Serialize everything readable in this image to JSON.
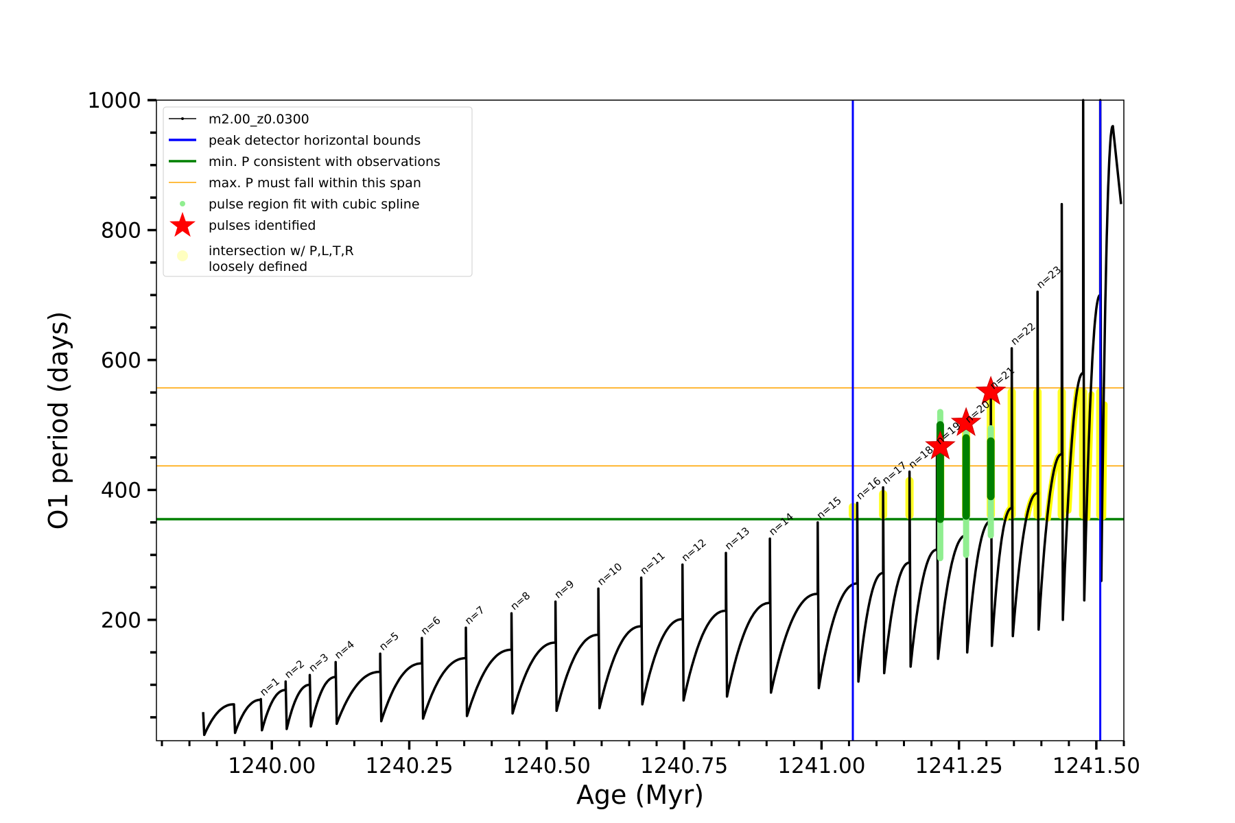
{
  "chart_data": {
    "type": "line",
    "xlabel": "Age (Myr)",
    "ylabel": "O1 period (days)",
    "xlim": [
      1239.79,
      1241.55
    ],
    "ylim": [
      14,
      1000
    ],
    "xticks": [
      1240.0,
      1240.25,
      1240.5,
      1240.75,
      1241.0,
      1241.25,
      1241.5
    ],
    "xtick_labels": [
      "1240.00",
      "1240.25",
      "1240.50",
      "1240.75",
      "1241.00",
      "1241.25",
      "1241.50"
    ],
    "yticks": [
      200,
      400,
      600,
      800,
      1000
    ],
    "ytick_labels": [
      "200",
      "400",
      "600",
      "800",
      "1000"
    ],
    "legend_position": "upper-left",
    "grid": false,
    "legend": [
      {
        "key": "track",
        "label": "m2.00_z0.0300",
        "marker": "line-dot",
        "color": "#000000"
      },
      {
        "key": "peak",
        "label": "peak detector horizontal bounds",
        "marker": "line",
        "color": "#0000ff"
      },
      {
        "key": "minp",
        "label": "min. P consistent with observations",
        "marker": "line",
        "color": "#008000"
      },
      {
        "key": "maxp",
        "label": "max. P must fall within this span",
        "marker": "line-thin",
        "color": "#ffa500"
      },
      {
        "key": "spline",
        "label": "pulse region fit with cubic spline",
        "marker": "dot",
        "color": "#90ee90"
      },
      {
        "key": "pulse",
        "label": "pulses identified",
        "marker": "star",
        "color": "#ff0000"
      },
      {
        "key": "intersect",
        "label": "intersection w/ P,L,T,R",
        "label2": "loosely defined",
        "marker": "big-dot",
        "color": "#ffffc0"
      }
    ],
    "vertical_lines": {
      "color": "#0000ff",
      "x": [
        1241.057,
        1241.507
      ]
    },
    "horizontal_lines": [
      {
        "y": 355,
        "color": "#008000",
        "kind": "min_period"
      },
      {
        "y": 437,
        "color": "#ffa500",
        "kind": "max_period_lower"
      },
      {
        "y": 557,
        "color": "#ffa500",
        "kind": "max_period_upper"
      }
    ],
    "series": [
      {
        "name": "m2.00_z0.0300",
        "color": "#000000",
        "pulses": [
          {
            "t0": 1239.875,
            "t1": 1239.931,
            "start": 23,
            "end": 70,
            "peak": 58
          },
          {
            "t0": 1239.931,
            "t1": 1239.98,
            "start": 26,
            "end": 77,
            "peak": 68
          },
          {
            "t0": 1239.98,
            "t1": 1240.025,
            "start": 30,
            "end": 92,
            "peak": 78,
            "n": "n=1"
          },
          {
            "t0": 1240.025,
            "t1": 1240.069,
            "start": 32,
            "end": 100,
            "peak": 105,
            "n": "n=2"
          },
          {
            "t0": 1240.069,
            "t1": 1240.116,
            "start": 36,
            "end": 112,
            "peak": 115,
            "n": "n=3"
          },
          {
            "t0": 1240.116,
            "t1": 1240.197,
            "start": 40,
            "end": 120,
            "peak": 135,
            "n": "n=4"
          },
          {
            "t0": 1240.197,
            "t1": 1240.273,
            "start": 44,
            "end": 133,
            "peak": 148,
            "n": "n=5"
          },
          {
            "t0": 1240.273,
            "t1": 1240.353,
            "start": 48,
            "end": 141,
            "peak": 172,
            "n": "n=6"
          },
          {
            "t0": 1240.353,
            "t1": 1240.436,
            "start": 52,
            "end": 154,
            "peak": 188,
            "n": "n=7"
          },
          {
            "t0": 1240.436,
            "t1": 1240.516,
            "start": 56,
            "end": 165,
            "peak": 210,
            "n": "n=8"
          },
          {
            "t0": 1240.516,
            "t1": 1240.594,
            "start": 60,
            "end": 177,
            "peak": 228,
            "n": "n=9"
          },
          {
            "t0": 1240.594,
            "t1": 1240.672,
            "start": 64,
            "end": 190,
            "peak": 248,
            "n": "n=10"
          },
          {
            "t0": 1240.672,
            "t1": 1240.747,
            "start": 70,
            "end": 201,
            "peak": 265,
            "n": "n=11"
          },
          {
            "t0": 1240.747,
            "t1": 1240.826,
            "start": 76,
            "end": 214,
            "peak": 285,
            "n": "n=12"
          },
          {
            "t0": 1240.826,
            "t1": 1240.906,
            "start": 82,
            "end": 226,
            "peak": 303,
            "n": "n=13"
          },
          {
            "t0": 1240.906,
            "t1": 1240.993,
            "start": 88,
            "end": 240,
            "peak": 325,
            "n": "n=14"
          },
          {
            "t0": 1240.993,
            "t1": 1241.065,
            "start": 95,
            "end": 256,
            "peak": 350,
            "n": "n=15"
          },
          {
            "t0": 1241.065,
            "t1": 1241.112,
            "start": 105,
            "end": 272,
            "peak": 380,
            "n": "n=16"
          },
          {
            "t0": 1241.112,
            "t1": 1241.16,
            "start": 118,
            "end": 288,
            "peak": 404,
            "n": "n=17"
          },
          {
            "t0": 1241.16,
            "t1": 1241.21,
            "start": 128,
            "end": 308,
            "peak": 428,
            "n": "n=18"
          },
          {
            "t0": 1241.21,
            "t1": 1241.263,
            "start": 140,
            "end": 330,
            "peak": 465,
            "n": "n=19"
          },
          {
            "t0": 1241.263,
            "t1": 1241.308,
            "start": 150,
            "end": 352,
            "peak": 498,
            "n": "n=20"
          },
          {
            "t0": 1241.308,
            "t1": 1241.346,
            "start": 160,
            "end": 372,
            "peak": 550,
            "n": "n=21"
          },
          {
            "t0": 1241.346,
            "t1": 1241.393,
            "start": 175,
            "end": 395,
            "peak": 618,
            "n": "n=22"
          },
          {
            "t0": 1241.393,
            "t1": 1241.437,
            "start": 185,
            "end": 455,
            "peak": 705,
            "n": "n=23"
          },
          {
            "t0": 1241.437,
            "t1": 1241.476,
            "start": 200,
            "end": 580,
            "peak": 840
          },
          {
            "t0": 1241.476,
            "t1": 1241.507,
            "start": 230,
            "end": 700,
            "peak": 1000
          },
          {
            "t0": 1241.507,
            "t1": 1241.53,
            "start": 260,
            "end": 960,
            "peak": 1000
          }
        ],
        "tail": {
          "t": 1241.545,
          "p": 840
        }
      }
    ],
    "pulses_identified": [
      {
        "x": 1241.216,
        "y": 467
      },
      {
        "x": 1241.263,
        "y": 503
      },
      {
        "x": 1241.308,
        "y": 551
      }
    ],
    "spline_fit_regions": [
      {
        "x": 1241.216,
        "ymin": 295,
        "ymax": 520
      },
      {
        "x": 1241.263,
        "ymin": 300,
        "ymax": 500
      },
      {
        "x": 1241.308,
        "ymin": 330,
        "ymax": 495
      }
    ],
    "intersection_regions": [
      {
        "x": 1241.057,
        "ymin": 355,
        "ymax": 380
      },
      {
        "x": 1241.112,
        "ymin": 355,
        "ymax": 400
      },
      {
        "x": 1241.16,
        "ymin": 355,
        "ymax": 420
      },
      {
        "x": 1241.216,
        "ymin": 355,
        "ymax": 470
      },
      {
        "x": 1241.263,
        "ymin": 355,
        "ymax": 500
      },
      {
        "x": 1241.308,
        "ymin": 355,
        "ymax": 557
      },
      {
        "x": 1241.346,
        "ymin": 355,
        "ymax": 557
      },
      {
        "x": 1241.393,
        "ymin": 355,
        "ymax": 557
      },
      {
        "x": 1241.437,
        "ymin": 355,
        "ymax": 557
      },
      {
        "x": 1241.476,
        "ymin": 355,
        "ymax": 557
      },
      {
        "x": 1241.507,
        "ymin": 355,
        "ymax": 557
      }
    ]
  }
}
